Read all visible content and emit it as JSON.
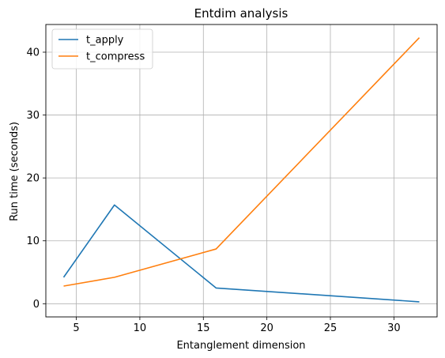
{
  "chart_data": {
    "type": "line",
    "title": "Entdim analysis",
    "xlabel": "Entanglement dimension",
    "ylabel": "Run time (seconds)",
    "xlim": [
      2.6,
      33.4
    ],
    "ylim": [
      -2.1,
      44.4
    ],
    "xticks": [
      5,
      10,
      15,
      20,
      25,
      30
    ],
    "yticks": [
      0,
      10,
      20,
      30,
      40
    ],
    "grid": true,
    "legend_position": "top-left",
    "series": [
      {
        "name": "t_apply",
        "color": "#1f77b4",
        "x": [
          4,
          8,
          16,
          32
        ],
        "y": [
          4.2,
          15.7,
          2.5,
          0.3
        ]
      },
      {
        "name": "t_compress",
        "color": "#ff7f0e",
        "x": [
          4,
          8,
          16,
          32
        ],
        "y": [
          2.8,
          4.2,
          8.7,
          42.3
        ]
      }
    ]
  }
}
